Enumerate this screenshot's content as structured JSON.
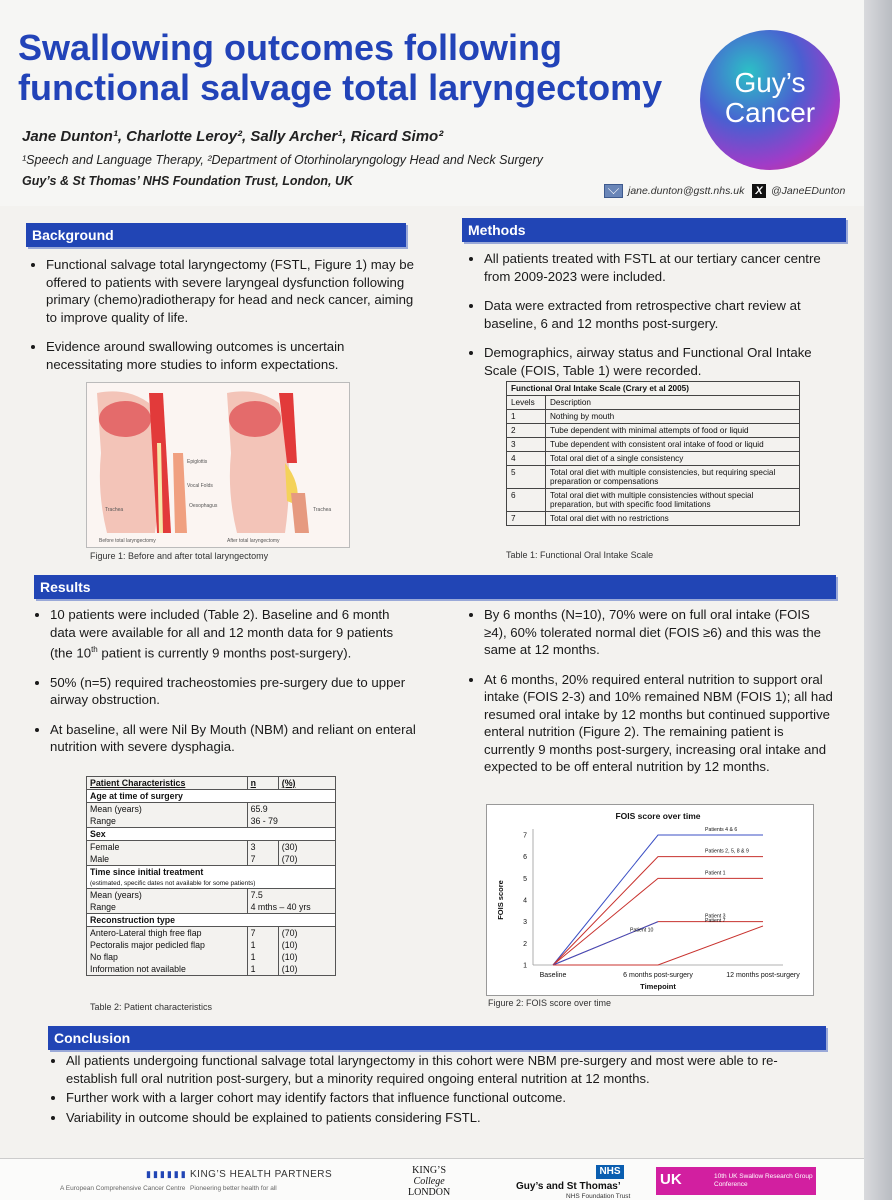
{
  "header": {
    "title_line1": "Swallowing outcomes following",
    "title_line2": "functional salvage total laryngectomy",
    "authors": "Jane Dunton¹, Charlotte Leroy², Sally Archer¹, Ricard Simo²",
    "affiliation1": "¹Speech and Language Therapy, ²Department of Otorhinolaryngology Head and Neck Surgery",
    "affiliation2": "Guy’s & St Thomas’ NHS Foundation Trust, London, UK",
    "logo_line1": "Guy’s",
    "logo_line2": "Cancer",
    "email": "jane.dunton@gstt.nhs.uk",
    "x_handle": "@JaneEDunton",
    "x_glyph": "X"
  },
  "background": {
    "heading": "Background",
    "bullets": [
      "Functional salvage total laryngectomy (FSTL, Figure 1) may be offered to patients with severe laryngeal dysfunction following primary (chemo)radiotherapy for head and neck cancer, aiming to improve quality of life.",
      "Evidence around swallowing outcomes is uncertain necessitating more studies to inform expectations."
    ],
    "figure_caption": "Figure 1: Before and after total laryngectomy",
    "fig_labels": {
      "epiglottis": "Epiglottis",
      "vocal_folds": "Vocal Folds",
      "oesophagus": "Oesophagus",
      "trachea_left": "Trachea",
      "trachea_right": "Trachea",
      "before": "Before total laryngectomy",
      "after": "After total laryngectomy"
    }
  },
  "methods": {
    "heading": "Methods",
    "bullets": [
      "All patients treated with FSTL at our tertiary cancer centre from 2009-2023 were included.",
      "Data were extracted from retrospective chart review at baseline, 6 and 12 months post-surgery.",
      "Demographics, airway status and Functional Oral Intake Scale (FOIS, Table 1) were recorded."
    ],
    "fois_table": {
      "title": "Functional Oral Intake Scale (Crary et al 2005)",
      "col_levels": "Levels",
      "col_desc": "Description",
      "rows": [
        {
          "level": "1",
          "desc": "Nothing by mouth"
        },
        {
          "level": "2",
          "desc": "Tube dependent with minimal attempts of food or liquid"
        },
        {
          "level": "3",
          "desc": "Tube dependent with consistent oral intake of food or liquid"
        },
        {
          "level": "4",
          "desc": "Total oral diet of a single consistency"
        },
        {
          "level": "5",
          "desc": "Total oral diet with multiple consistencies, but requiring special preparation or compensations"
        },
        {
          "level": "6",
          "desc": "Total oral diet with multiple consistencies without special preparation, but with specific food limitations"
        },
        {
          "level": "7",
          "desc": "Total oral diet with no restrictions"
        }
      ],
      "caption": "Table 1: Functional Oral Intake Scale"
    }
  },
  "results": {
    "heading": "Results",
    "left_bullet1_a": "10 patients were included (Table 2). Baseline and 6 month data were available for all and 12 month data for 9 patients (the 10",
    "left_bullet1_sup": "th",
    "left_bullet1_b": " patient is currently 9 months post-surgery).",
    "left_bullets": [
      "50% (n=5) required tracheostomies pre-surgery due to upper airway obstruction.",
      "At baseline, all were Nil By Mouth (NBM) and reliant on enteral nutrition with severe dysphagia."
    ],
    "right_bullets": [
      "By 6 months (N=10), 70% were on full oral intake (FOIS ≥4), 60% tolerated normal diet (FOIS ≥6) and this was the same at 12 months.",
      "At 6 months, 20% required enteral nutrition to support oral intake (FOIS 2-3) and 10% remained NBM (FOIS 1); all had resumed oral intake by 12 months but continued supportive enteral nutrition (Figure 2). The remaining patient is currently 9 months post-surgery, increasing oral intake and expected to be off enteral nutrition by 12 months."
    ],
    "pc_table": {
      "h1": "Patient Characteristics",
      "h2": "n",
      "h3": "(%)",
      "g_age": "Age at time of surgery",
      "mean_years": "Mean (years)",
      "age_mean": "65.9",
      "range": "Range",
      "age_range": "36 - 79",
      "g_sex": "Sex",
      "female": "Female",
      "female_n": "3",
      "female_p": "(30)",
      "male": "Male",
      "male_n": "7",
      "male_p": "(70)",
      "g_time": "Time since initial treatment",
      "g_time_note": "(estimated, specific dates not available for some patients)",
      "time_mean_label": "Mean (years)",
      "time_mean": "7.5",
      "time_range_label": "Range",
      "time_range": "4 mths – 40 yrs",
      "g_recon": "Reconstruction type",
      "alt": "Antero-Lateral thigh free flap",
      "alt_n": "7",
      "alt_p": "(70)",
      "pm": "Pectoralis major pedicled flap",
      "pm_n": "1",
      "pm_p": "(10)",
      "nf": "No flap",
      "nf_n": "1",
      "nf_p": "(10)",
      "na": "Information not available",
      "na_n": "1",
      "na_p": "(10)",
      "caption": "Table 2: Patient characteristics"
    },
    "figure2_caption": "Figure 2: FOIS score over time"
  },
  "chart_data": {
    "type": "line",
    "title": "FOIS score over time",
    "xlabel": "Timepoint",
    "ylabel": "FOIS score",
    "categories": [
      "Baseline",
      "6 months post-surgery",
      "12 months post-surgery"
    ],
    "ylim": [
      1,
      7
    ],
    "yticks": [
      "1",
      "2",
      "3",
      "4",
      "5",
      "6",
      "7"
    ],
    "series": [
      {
        "name": "Patients 4 & 6",
        "values": [
          1,
          7,
          7
        ],
        "color": "#3b4fc4"
      },
      {
        "name": "Patients 2, 5, 8 & 9",
        "values": [
          1,
          6,
          6
        ],
        "color": "#c8322e"
      },
      {
        "name": "Patient 1",
        "values": [
          1,
          5,
          5
        ],
        "color": "#c8322e"
      },
      {
        "name": "Patient 3",
        "values": [
          1,
          3,
          3
        ],
        "color": "#c8322e"
      },
      {
        "name": "Patient 10",
        "values": [
          1,
          3,
          null
        ],
        "color": "#3b4fc4"
      },
      {
        "name": "Patient 7",
        "values": [
          1,
          1,
          2.8
        ],
        "color": "#c8322e"
      }
    ]
  },
  "conclusion": {
    "heading": "Conclusion",
    "bullets": [
      "All patients undergoing functional salvage total laryngectomy in this cohort were NBM pre-surgery and most were able to re-establish full oral nutrition post-surgery, but a minority required ongoing enteral nutrition at 12 months.",
      "Further work with a larger cohort may identify factors that influence functional outcome.",
      "Variability in outcome should be explained to patients considering FSTL."
    ]
  },
  "footer": {
    "khp": "KING’S HEALTH PARTNERS",
    "khp_sub": "Pioneering better health for all",
    "ecc": "A European Comprehensive Cancer Centre",
    "kcl1": "KING’S",
    "kcl2": "College",
    "kcl3": "LONDON",
    "gstt": "Guy’s and St Thomas’",
    "gstt_sub": "NHS Foundation Trust",
    "nhs": "NHS",
    "uk": "UK",
    "conf": "10th UK Swallow Research Group Conference"
  }
}
